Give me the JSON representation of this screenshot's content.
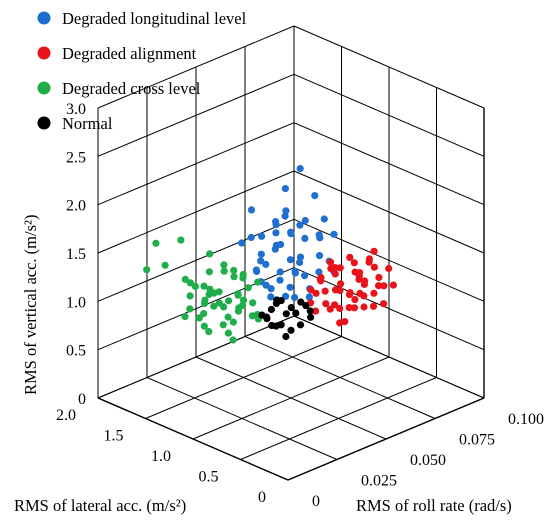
{
  "chart_data": {
    "type": "scatter",
    "subtype": "3d-scatter",
    "legend_position": "top-left",
    "legend": [
      {
        "name": "Degraded longitudinal level",
        "color": "#1f6fd0"
      },
      {
        "name": "Degraded alignment",
        "color": "#e8141b"
      },
      {
        "name": "Degraded cross level",
        "color": "#1fae4a"
      },
      {
        "name": "Normal",
        "color": "#000000"
      }
    ],
    "axes": {
      "x": {
        "label": "RMS of lateral acc. (m/s²)",
        "ticks": [
          "0",
          "0.5",
          "1.0",
          "1.5",
          "2.0"
        ],
        "range": [
          0,
          2.0
        ]
      },
      "y": {
        "label": "RMS of roll rate (rad/s)",
        "ticks": [
          "0",
          "0.025",
          "0.050",
          "0.075",
          "0.100"
        ],
        "range": [
          0,
          0.1
        ]
      },
      "z": {
        "label": "RMS of vertical acc. (m/s²)",
        "ticks": [
          "0",
          "0.5",
          "1.0",
          "1.5",
          "2.0",
          "2.5",
          "3.0"
        ],
        "range": [
          0,
          3.0
        ]
      }
    },
    "grid": true,
    "series": [
      {
        "name": "Degraded longitudinal level",
        "color": "#1f6fd0",
        "points": [
          [
            0.7,
            0.03,
            1.6
          ],
          [
            0.8,
            0.035,
            1.8
          ],
          [
            0.75,
            0.04,
            1.5
          ],
          [
            0.9,
            0.03,
            1.7
          ],
          [
            0.65,
            0.025,
            1.9
          ],
          [
            0.85,
            0.045,
            1.4
          ],
          [
            0.7,
            0.05,
            1.6
          ],
          [
            0.6,
            0.035,
            1.7
          ],
          [
            0.95,
            0.04,
            1.9
          ],
          [
            0.8,
            0.02,
            2.0
          ],
          [
            0.75,
            0.03,
            2.1
          ],
          [
            0.7,
            0.045,
            1.3
          ],
          [
            0.9,
            0.05,
            1.5
          ],
          [
            0.65,
            0.04,
            1.5
          ],
          [
            0.85,
            0.025,
            1.6
          ],
          [
            1.0,
            0.035,
            1.8
          ],
          [
            0.55,
            0.03,
            1.4
          ],
          [
            0.8,
            0.055,
            1.7
          ],
          [
            0.7,
            0.02,
            1.8
          ],
          [
            0.9,
            0.025,
            2.2
          ],
          [
            0.75,
            0.035,
            2.4
          ],
          [
            0.6,
            0.045,
            1.9
          ],
          [
            0.85,
            0.04,
            1.2
          ],
          [
            1.05,
            0.045,
            1.6
          ],
          [
            0.65,
            0.055,
            1.8
          ],
          [
            0.8,
            0.03,
            1.3
          ],
          [
            0.7,
            0.04,
            2.0
          ],
          [
            0.95,
            0.03,
            1.5
          ],
          [
            0.5,
            0.04,
            1.6
          ],
          [
            0.75,
            0.05,
            2.2
          ],
          [
            0.85,
            0.035,
            1.9
          ],
          [
            0.6,
            0.025,
            1.6
          ],
          [
            0.9,
            0.045,
            1.8
          ],
          [
            0.8,
            0.04,
            1.6
          ],
          [
            0.7,
            0.035,
            1.4
          ],
          [
            1.0,
            0.05,
            1.7
          ],
          [
            0.65,
            0.03,
            2.2
          ],
          [
            0.55,
            0.05,
            1.5
          ],
          [
            0.8,
            0.045,
            2.5
          ],
          [
            0.9,
            0.035,
            1.3
          ],
          [
            0.75,
            0.025,
            1.7
          ],
          [
            0.85,
            0.05,
            1.9
          ],
          [
            0.7,
            0.055,
            1.5
          ],
          [
            0.95,
            0.045,
            2.0
          ],
          [
            0.6,
            0.04,
            1.3
          ],
          [
            0.8,
            0.025,
            1.5
          ],
          [
            0.75,
            0.045,
            1.8
          ],
          [
            0.9,
            0.02,
            1.9
          ],
          [
            0.65,
            0.05,
            2.0
          ],
          [
            0.85,
            0.03,
            1.4
          ]
        ]
      },
      {
        "name": "Degraded alignment",
        "color": "#e8141b",
        "points": [
          [
            0.9,
            0.07,
            0.8
          ],
          [
            1.0,
            0.075,
            0.9
          ],
          [
            0.95,
            0.08,
            0.7
          ],
          [
            1.1,
            0.07,
            1.0
          ],
          [
            0.85,
            0.085,
            0.85
          ],
          [
            1.05,
            0.065,
            0.75
          ],
          [
            0.9,
            0.09,
            0.95
          ],
          [
            1.15,
            0.08,
            0.8
          ],
          [
            0.8,
            0.075,
            1.1
          ],
          [
            1.0,
            0.085,
            1.0
          ],
          [
            0.95,
            0.07,
            1.2
          ],
          [
            1.1,
            0.09,
            0.7
          ],
          [
            0.85,
            0.065,
            0.9
          ],
          [
            1.2,
            0.075,
            0.95
          ],
          [
            0.9,
            0.08,
            1.05
          ],
          [
            1.05,
            0.09,
            0.85
          ],
          [
            0.75,
            0.08,
            0.8
          ],
          [
            1.0,
            0.06,
            0.9
          ],
          [
            0.95,
            0.095,
            0.8
          ],
          [
            1.1,
            0.075,
            1.15
          ],
          [
            0.85,
            0.09,
            0.7
          ],
          [
            1.15,
            0.07,
            0.85
          ],
          [
            0.9,
            0.07,
            0.65
          ],
          [
            1.0,
            0.08,
            1.2
          ],
          [
            0.8,
            0.085,
            0.95
          ],
          [
            1.05,
            0.075,
            1.05
          ],
          [
            0.95,
            0.085,
            0.9
          ],
          [
            1.2,
            0.085,
            0.8
          ],
          [
            0.85,
            0.075,
            1.25
          ],
          [
            1.1,
            0.065,
            0.95
          ],
          [
            0.9,
            0.095,
            1.0
          ],
          [
            1.0,
            0.07,
            0.75
          ],
          [
            0.95,
            0.065,
            1.0
          ],
          [
            1.15,
            0.09,
            0.9
          ],
          [
            0.8,
            0.07,
            0.85
          ],
          [
            1.05,
            0.085,
            0.7
          ],
          [
            0.9,
            0.085,
            1.15
          ],
          [
            1.1,
            0.08,
            1.05
          ],
          [
            0.85,
            0.08,
            0.75
          ],
          [
            1.0,
            0.09,
            1.1
          ],
          [
            0.95,
            0.075,
            0.6
          ],
          [
            1.2,
            0.08,
            1.0
          ],
          [
            0.75,
            0.075,
            0.95
          ],
          [
            1.05,
            0.095,
            0.95
          ],
          [
            0.9,
            0.075,
            0.9
          ],
          [
            1.0,
            0.065,
            1.1
          ],
          [
            1.1,
            0.085,
            0.75
          ],
          [
            0.85,
            0.095,
            0.85
          ],
          [
            0.95,
            0.09,
            1.2
          ],
          [
            1.15,
            0.075,
            0.7
          ]
        ]
      },
      {
        "name": "Degraded cross level",
        "color": "#1fae4a",
        "points": [
          [
            1.3,
            0.03,
            0.8
          ],
          [
            1.4,
            0.035,
            0.9
          ],
          [
            1.5,
            0.03,
            0.7
          ],
          [
            1.35,
            0.04,
            1.0
          ],
          [
            1.6,
            0.035,
            0.85
          ],
          [
            1.45,
            0.045,
            0.75
          ],
          [
            1.25,
            0.035,
            1.1
          ],
          [
            1.55,
            0.04,
            0.95
          ],
          [
            1.4,
            0.025,
            1.2
          ],
          [
            1.7,
            0.04,
            0.8
          ],
          [
            1.3,
            0.045,
            0.9
          ],
          [
            1.5,
            0.05,
            0.8
          ],
          [
            1.45,
            0.03,
            1.05
          ],
          [
            1.65,
            0.03,
            0.95
          ],
          [
            1.35,
            0.025,
            0.75
          ],
          [
            1.6,
            0.045,
            1.1
          ],
          [
            1.2,
            0.04,
            0.85
          ],
          [
            1.55,
            0.025,
            0.9
          ],
          [
            1.4,
            0.045,
            1.15
          ],
          [
            1.75,
            0.035,
            1.0
          ],
          [
            1.3,
            0.02,
            1.0
          ],
          [
            1.5,
            0.04,
            1.25
          ],
          [
            1.45,
            0.05,
            0.95
          ],
          [
            1.65,
            0.045,
            0.75
          ],
          [
            1.35,
            0.035,
            0.65
          ],
          [
            1.55,
            0.035,
            1.2
          ],
          [
            1.25,
            0.03,
            0.9
          ],
          [
            1.7,
            0.03,
            1.1
          ],
          [
            1.4,
            0.04,
            0.7
          ],
          [
            1.6,
            0.025,
            0.8
          ],
          [
            1.3,
            0.04,
            1.2
          ],
          [
            1.5,
            0.035,
            1.0
          ],
          [
            1.45,
            0.025,
            0.85
          ],
          [
            1.8,
            0.04,
            0.9
          ],
          [
            1.35,
            0.05,
            1.05
          ],
          [
            1.55,
            0.05,
            0.7
          ],
          [
            1.2,
            0.035,
            1.0
          ],
          [
            1.65,
            0.04,
            1.3
          ],
          [
            1.4,
            0.03,
            0.95
          ],
          [
            1.5,
            0.045,
            1.15
          ],
          [
            1.3,
            0.035,
            0.6
          ],
          [
            1.75,
            0.045,
            0.85
          ],
          [
            1.45,
            0.04,
            0.9
          ],
          [
            1.6,
            0.05,
            1.0
          ],
          [
            1.25,
            0.045,
            0.8
          ],
          [
            1.85,
            0.035,
            1.4
          ],
          [
            1.9,
            0.02,
            1.2
          ],
          [
            1.7,
            0.015,
            1.6
          ],
          [
            1.5,
            0.01,
            1.5
          ],
          [
            1.55,
            0.06,
            0.5
          ]
        ]
      },
      {
        "name": "Normal",
        "color": "#000000",
        "points": [
          [
            1.0,
            0.045,
            0.8
          ],
          [
            1.05,
            0.05,
            0.85
          ],
          [
            0.95,
            0.05,
            0.9
          ],
          [
            1.1,
            0.045,
            0.75
          ],
          [
            1.0,
            0.055,
            0.95
          ],
          [
            1.05,
            0.04,
            0.9
          ],
          [
            0.95,
            0.045,
            0.7
          ],
          [
            1.1,
            0.055,
            0.85
          ],
          [
            1.0,
            0.04,
            1.0
          ],
          [
            0.9,
            0.05,
            0.8
          ],
          [
            1.15,
            0.05,
            0.95
          ],
          [
            1.0,
            0.06,
            0.75
          ],
          [
            1.05,
            0.06,
            0.85
          ],
          [
            0.95,
            0.04,
            0.85
          ],
          [
            1.1,
            0.04,
            0.9
          ],
          [
            1.0,
            0.05,
            0.7
          ],
          [
            1.05,
            0.045,
            1.0
          ],
          [
            0.9,
            0.055,
            0.9
          ],
          [
            1.15,
            0.045,
            0.8
          ],
          [
            1.0,
            0.045,
            1.05
          ]
        ]
      }
    ]
  }
}
